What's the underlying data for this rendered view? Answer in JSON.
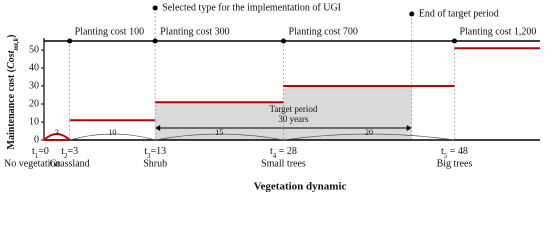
{
  "chart_data": {
    "type": "step",
    "ylabel": [
      "Maintenance cost (",
      "Cost",
      "mt,k",
      ")"
    ],
    "xlabel": "Vegetation dynamic",
    "x": [
      0,
      3,
      13,
      28,
      48
    ],
    "values": [
      0,
      11,
      21,
      30,
      51
    ],
    "color": "#c00000",
    "time_labels": [
      [
        "t",
        "1",
        "=0"
      ],
      [
        "t",
        "2",
        "=3"
      ],
      [
        "t",
        "3",
        "=13"
      ],
      [
        "t",
        "4",
        " = 28"
      ],
      [
        "t",
        "5",
        " = 48"
      ]
    ],
    "stage_names": [
      "No vegetation",
      "Grassland",
      "Shrub",
      "Small trees",
      "Big trees"
    ],
    "intervals": [
      3,
      10,
      15,
      20
    ],
    "planting": [
      {
        "x": 3,
        "label": "Planting cost 100"
      },
      {
        "x": 13,
        "label": "Planting cost 300"
      },
      {
        "x": 28,
        "label": "Planting cost 700"
      },
      {
        "x": 48,
        "label": "Planting cost 1,200"
      }
    ],
    "selected": {
      "x": 13,
      "label": "Selected type for the implementation of UGI"
    },
    "target": {
      "start": 13,
      "end": 43,
      "label": "Target period",
      "sublabel": "30 years",
      "end_label": "End of target period"
    },
    "xlim": [
      0,
      58
    ],
    "ylim": [
      0,
      55
    ],
    "yticks": [
      0,
      10,
      20,
      30,
      40,
      50
    ]
  }
}
